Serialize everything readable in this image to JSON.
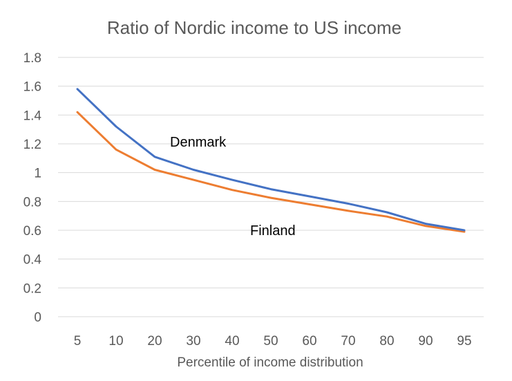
{
  "chart_data": {
    "type": "line",
    "title": "Ratio of Nordic income to US income",
    "xlabel": "Percentile of income distribution",
    "ylabel": "",
    "categories": [
      "5",
      "10",
      "20",
      "30",
      "40",
      "50",
      "60",
      "70",
      "80",
      "90",
      "95"
    ],
    "yticks": [
      "0",
      "0.2",
      "0.4",
      "0.6",
      "0.8",
      "1",
      "1.2",
      "1.4",
      "1.6",
      "1.8"
    ],
    "ylim": [
      0,
      1.8
    ],
    "grid": true,
    "legend": "none",
    "series": [
      {
        "name": "Denmark",
        "color": "#4472c4",
        "values": [
          1.58,
          1.32,
          1.11,
          1.02,
          0.95,
          0.885,
          0.835,
          0.785,
          0.725,
          0.645,
          0.6
        ]
      },
      {
        "name": "Finland",
        "color": "#ed7d31",
        "values": [
          1.42,
          1.16,
          1.02,
          0.95,
          0.88,
          0.825,
          0.78,
          0.735,
          0.695,
          0.63,
          0.59
        ]
      }
    ],
    "annotations": [
      {
        "text": "Denmark",
        "series": 0
      },
      {
        "text": "Finland",
        "series": 1
      }
    ]
  }
}
